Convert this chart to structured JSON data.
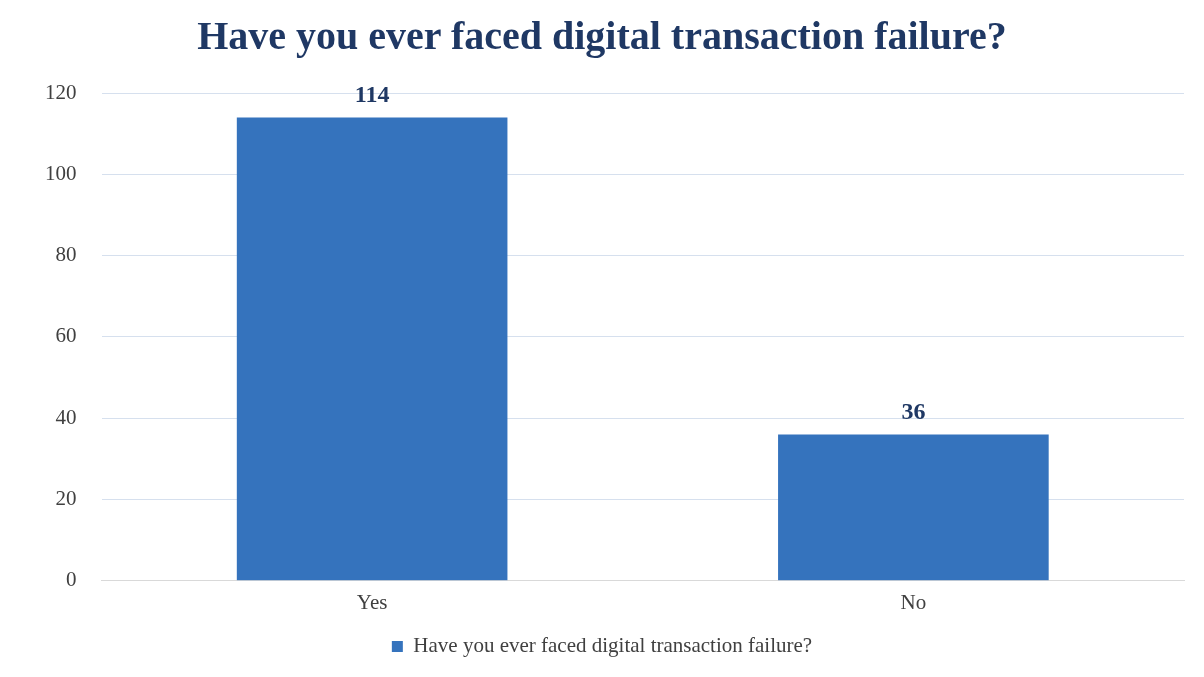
{
  "chart_data": {
    "type": "bar",
    "title": "Have you ever faced digital transaction failure?",
    "categories": [
      "Yes",
      "No"
    ],
    "series": [
      {
        "name": "Have you ever faced digital transaction failure?",
        "color": "#3573bd",
        "values": [
          114,
          36
        ]
      }
    ],
    "ylim": [
      0,
      120
    ],
    "yticks": [
      0,
      20,
      40,
      60,
      80,
      100,
      120
    ],
    "grid": "y",
    "legend": "bottom",
    "data_labels": true
  }
}
